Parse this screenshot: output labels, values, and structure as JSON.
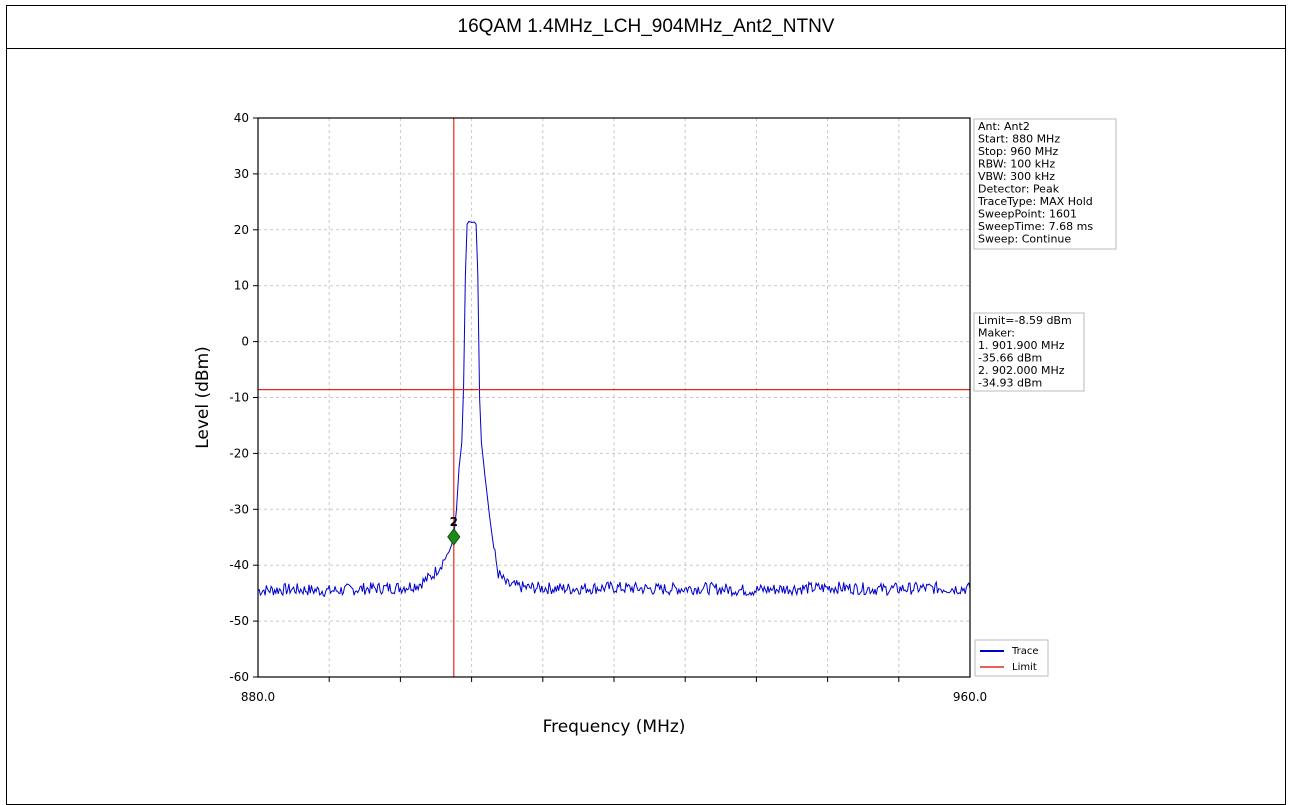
{
  "header": {
    "title": "16QAM 1.4MHz_LCH_904MHz_Ant2_NTNV"
  },
  "chart_data": {
    "type": "line",
    "xlabel": "Frequency (MHz)",
    "ylabel": "Level (dBm)",
    "xlim": [
      880.0,
      960.0
    ],
    "ylim": [
      -60,
      40
    ],
    "x_tick_labels": [
      "880.0",
      "960.0"
    ],
    "y_ticks": [
      40,
      30,
      20,
      10,
      0,
      -10,
      -20,
      -30,
      -40,
      -50,
      -60
    ],
    "grid": true,
    "series": [
      {
        "name": "Trace",
        "color": "#0000cc",
        "x": [
          880.0,
          884.0,
          888.0,
          892.0,
          896.0,
          898.0,
          899.5,
          900.5,
          901.5,
          901.9,
          902.0,
          902.3,
          902.6,
          902.9,
          903.1,
          903.3,
          903.5,
          903.7,
          904.0,
          904.3,
          904.5,
          904.7,
          904.9,
          905.1,
          905.5,
          906.0,
          906.5,
          907.0,
          908.0,
          910.0,
          915.0,
          920.0,
          925.0,
          930.0,
          935.0,
          940.0,
          945.0,
          950.0,
          955.0,
          960.0
        ],
        "y": [
          -44.5,
          -44.3,
          -44.6,
          -44.2,
          -44.0,
          -43.5,
          -42.0,
          -40.0,
          -37.5,
          -35.66,
          -34.93,
          -30.0,
          -22.5,
          -18.0,
          -8.0,
          12.0,
          21.0,
          21.5,
          21.3,
          21.4,
          21.0,
          12.0,
          -10.0,
          -18.0,
          -24.0,
          -31.0,
          -37.0,
          -41.5,
          -43.5,
          -44.0,
          -44.2,
          -44.0,
          -44.3,
          -44.1,
          -44.5,
          -44.2,
          -44.0,
          -44.3,
          -44.1,
          -44.2
        ]
      },
      {
        "name": "Limit",
        "color": "#e8281c",
        "value": -8.59
      }
    ],
    "marker_line_x": 902.0,
    "markers": [
      {
        "label": "2",
        "x": 902.0,
        "y": -34.93,
        "color": "#1e8a1e"
      }
    ],
    "info_box": [
      "Ant: Ant2",
      "Start: 880 MHz",
      "Stop: 960 MHz",
      "RBW: 100 kHz",
      "VBW: 300 kHz",
      "Detector: Peak",
      "TraceType: MAX Hold",
      "SweepPoint: 1601",
      "SweepTime: 7.68 ms",
      "Sweep: Continue"
    ],
    "limit_box": [
      "Limit=-8.59 dBm",
      "Maker:",
      "1. 901.900 MHz",
      "     -35.66 dBm",
      "2. 902.000 MHz",
      "     -34.93 dBm"
    ],
    "legend": [
      "Trace",
      "Limit"
    ],
    "legend_position": "bottom-right"
  }
}
